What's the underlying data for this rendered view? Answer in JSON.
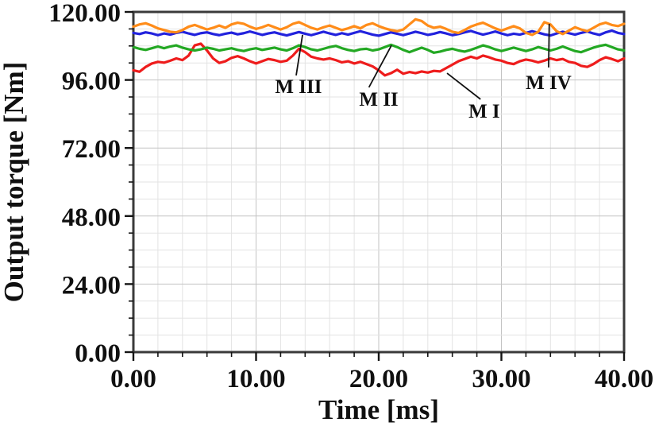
{
  "chart_data": {
    "type": "line",
    "title": "",
    "xlabel": "Time [ms]",
    "ylabel": "Output torque [Nm]",
    "xlim": [
      0,
      40
    ],
    "ylim": [
      0,
      120
    ],
    "x_major_ticks": [
      0,
      10,
      20,
      30,
      40
    ],
    "x_minor_step": 2,
    "y_major_ticks": [
      0,
      24,
      48,
      72,
      96,
      120
    ],
    "y_minor_step": 6,
    "tick_decimals": 2,
    "grid": {
      "on": true,
      "minor_color": "#e3e3e3",
      "major_color": "#c3c3c3"
    },
    "frame_color": "#3a3a3a",
    "tick_color": "#151515",
    "annotation_line_color": "#111111",
    "legend_position": "none",
    "x_start": 0,
    "x_step": 0.5,
    "series": [
      {
        "name": "M I",
        "color": "#ee1c1c",
        "values": [
          99.4,
          98.9,
          100.6,
          101.8,
          102.4,
          102.1,
          102.8,
          103.6,
          103.0,
          104.6,
          108.2,
          108.8,
          106.4,
          103.6,
          102.0,
          102.6,
          103.8,
          104.4,
          103.6,
          102.6,
          101.8,
          102.6,
          103.4,
          103.0,
          102.4,
          102.8,
          104.6,
          107.0,
          105.8,
          104.2,
          103.6,
          103.2,
          103.6,
          103.0,
          102.2,
          102.6,
          101.8,
          102.4,
          101.6,
          100.8,
          99.4,
          97.6,
          98.4,
          99.6,
          98.2,
          98.8,
          98.4,
          99.0,
          98.6,
          99.2,
          99.0,
          100.2,
          101.4,
          102.6,
          103.4,
          104.2,
          103.6,
          104.6,
          104.0,
          103.2,
          102.8,
          102.0,
          101.6,
          102.6,
          103.2,
          102.8,
          102.2,
          102.8,
          103.6,
          103.0,
          103.4,
          102.4,
          102.0,
          101.0,
          100.6,
          101.6,
          103.0,
          104.0,
          103.4,
          102.6,
          103.6
        ]
      },
      {
        "name": "M II",
        "color": "#23a823",
        "values": [
          107.6,
          107.0,
          106.6,
          107.2,
          107.8,
          107.2,
          107.8,
          108.2,
          107.4,
          106.8,
          106.4,
          106.8,
          107.4,
          107.0,
          106.4,
          106.8,
          107.2,
          106.6,
          106.2,
          106.8,
          107.2,
          106.6,
          107.0,
          107.4,
          106.8,
          106.4,
          107.2,
          108.2,
          107.6,
          106.8,
          106.4,
          107.0,
          107.6,
          108.0,
          107.2,
          106.6,
          106.2,
          106.8,
          107.0,
          106.4,
          106.8,
          107.6,
          108.4,
          107.6,
          106.6,
          105.8,
          106.6,
          107.4,
          106.6,
          105.6,
          106.0,
          106.6,
          107.0,
          106.4,
          106.0,
          106.6,
          107.4,
          108.2,
          107.6,
          106.8,
          106.2,
          106.8,
          107.4,
          106.8,
          106.2,
          106.8,
          107.6,
          107.0,
          106.4,
          107.0,
          107.8,
          107.0,
          106.2,
          105.8,
          106.6,
          107.4,
          108.0,
          108.4,
          107.6,
          106.8,
          106.4
        ]
      },
      {
        "name": "M III",
        "color": "#2222dd",
        "values": [
          112.6,
          112.2,
          112.8,
          112.4,
          111.8,
          112.4,
          112.0,
          112.6,
          113.0,
          112.4,
          111.9,
          112.5,
          112.8,
          112.2,
          111.8,
          112.3,
          112.7,
          112.1,
          112.5,
          113.1,
          112.5,
          111.9,
          112.4,
          112.8,
          112.2,
          111.7,
          112.3,
          112.9,
          112.3,
          111.8,
          112.4,
          113.0,
          112.4,
          111.9,
          112.5,
          112.0,
          112.6,
          113.2,
          112.6,
          112.0,
          111.6,
          112.2,
          112.8,
          112.3,
          111.8,
          112.4,
          113.0,
          112.5,
          111.9,
          112.3,
          112.9,
          112.4,
          111.8,
          112.2,
          112.8,
          113.3,
          112.6,
          112.0,
          112.5,
          113.1,
          112.4,
          111.8,
          112.3,
          112.0,
          112.6,
          113.2,
          112.7,
          112.1,
          111.7,
          112.4,
          113.0,
          112.5,
          112.0,
          112.6,
          113.1,
          112.4,
          111.9,
          112.8,
          113.4,
          112.6,
          112.2
        ]
      },
      {
        "name": "M IV",
        "color": "#ff8c19",
        "values": [
          114.8,
          115.6,
          116.0,
          115.2,
          114.2,
          113.6,
          113.0,
          112.8,
          113.6,
          114.8,
          115.4,
          114.6,
          113.8,
          114.4,
          115.2,
          114.4,
          115.6,
          116.2,
          115.8,
          114.8,
          114.0,
          114.6,
          115.4,
          114.6,
          113.8,
          114.6,
          115.8,
          116.4,
          115.4,
          114.4,
          113.8,
          114.6,
          115.2,
          114.4,
          113.6,
          114.2,
          115.0,
          114.2,
          115.4,
          116.0,
          115.0,
          114.2,
          113.6,
          113.2,
          113.8,
          115.6,
          117.4,
          116.8,
          115.2,
          114.4,
          114.8,
          114.0,
          113.0,
          112.6,
          113.6,
          114.8,
          115.6,
          116.2,
          115.2,
          114.2,
          113.4,
          114.2,
          115.0,
          114.2,
          112.6,
          111.9,
          113.0,
          116.4,
          115.6,
          113.2,
          112.2,
          113.4,
          114.6,
          113.8,
          113.2,
          114.4,
          115.6,
          116.2,
          115.4,
          115.0,
          115.8
        ]
      }
    ],
    "annotations": [
      {
        "label": "M III",
        "label_t": 13.46,
        "label_v": 93.9,
        "line": [
          [
            13.27,
            97.6
          ],
          [
            13.79,
            111.9
          ]
        ]
      },
      {
        "label": "M II",
        "label_t": 20.0,
        "label_v": 89.4,
        "line": [
          [
            19.2,
            93.4
          ],
          [
            21.04,
            108.2
          ]
        ]
      },
      {
        "label": "M I",
        "label_t": 28.6,
        "label_v": 85.2,
        "line": [
          [
            28.3,
            89.2
          ],
          [
            25.57,
            98.4
          ]
        ]
      },
      {
        "label": "M IV",
        "label_t": 33.85,
        "label_v": 95.3,
        "line": [
          [
            33.85,
            100.4
          ],
          [
            33.9,
            115.8
          ]
        ]
      }
    ]
  }
}
